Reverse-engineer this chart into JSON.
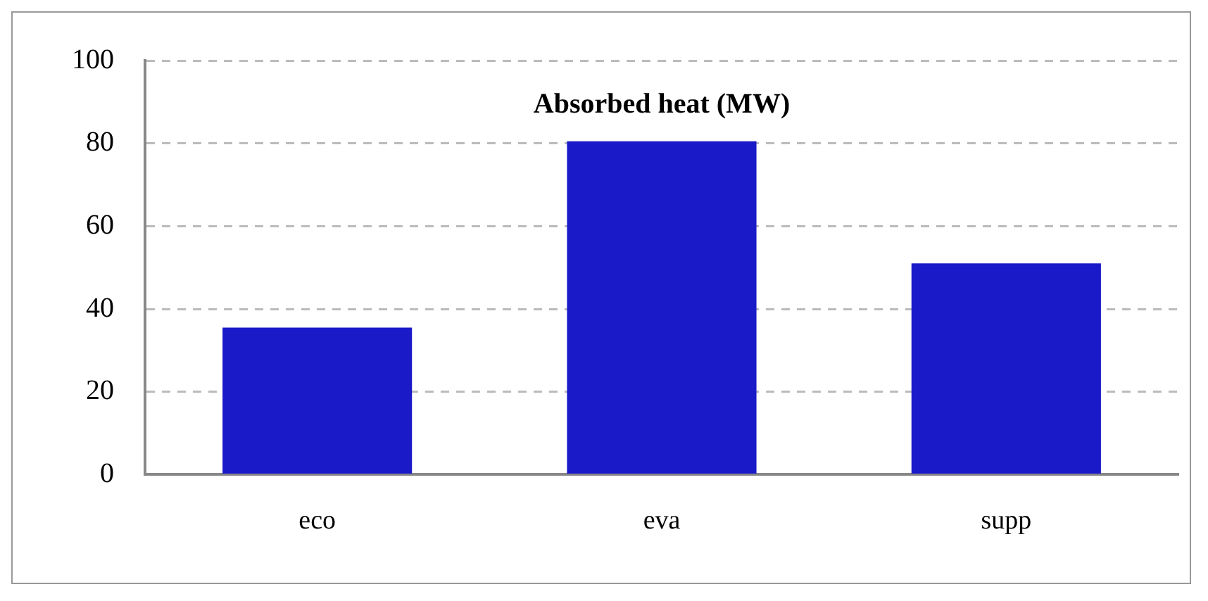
{
  "chart_data": {
    "type": "bar",
    "title": "Absorbed heat (MW)",
    "categories": [
      "eco",
      "eva",
      "supp"
    ],
    "values": [
      35.5,
      80.5,
      51
    ],
    "color": "#1a1ac8",
    "ylim": [
      0,
      100
    ],
    "yticks": [
      0,
      20,
      40,
      60,
      80,
      100
    ],
    "grid": "y",
    "legend": false
  }
}
